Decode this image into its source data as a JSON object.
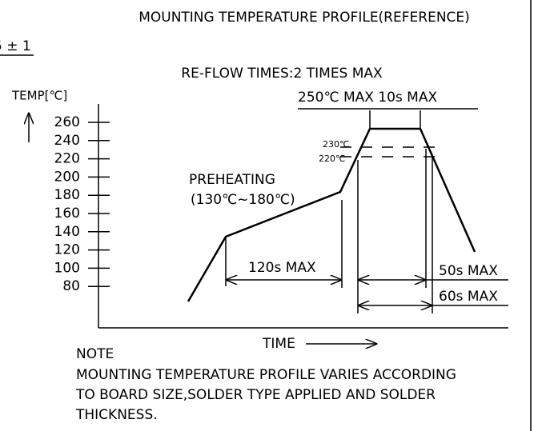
{
  "header": {
    "title": "MOUNTING TEMPERATURE PROFILE(REFERENCE)",
    "fragment": "5 ± 1"
  },
  "diagram": {
    "subtitle": "RE-FLOW TIMES:2 TIMES MAX",
    "y_label": "TEMP[℃]",
    "y_ticks": [
      "260",
      "240",
      "220",
      "200",
      "180",
      "160",
      "140",
      "120",
      "100",
      "80"
    ],
    "peak": "250℃ MAX 10s MAX",
    "level_230": "230℃",
    "level_220": "220℃",
    "preheat": "PREHEATING",
    "preheat_range": "(130℃~180℃)",
    "preheat_time": "120s MAX",
    "time_50": "50s MAX",
    "time_60": "60s MAX",
    "x_label": "TIME"
  },
  "note": {
    "heading": "NOTE",
    "lines": [
      "MOUNTING TEMPERATURE PROFILE VARIES ACCORDING",
      "TO BOARD SIZE,SOLDER TYPE APPLIED AND SOLDER",
      "THICKNESS."
    ]
  }
}
